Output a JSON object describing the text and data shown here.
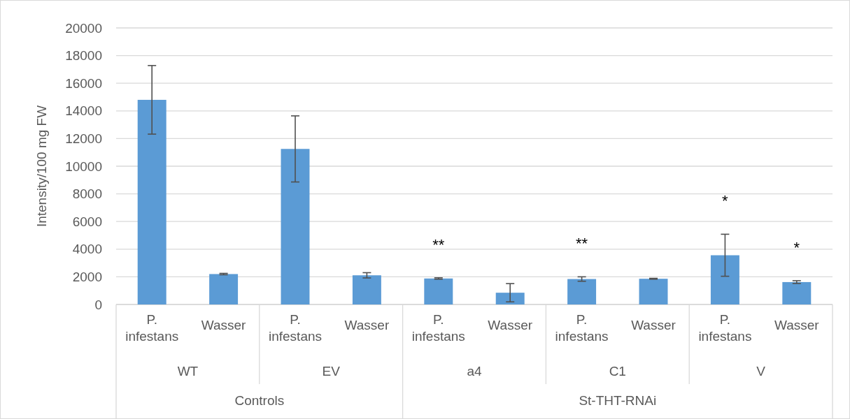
{
  "chart_data": {
    "type": "bar",
    "ylabel": "Intensity/100 mg FW",
    "categories": [
      "P. infestans",
      "Wasser",
      "P. infestans",
      "Wasser",
      "P. infestans",
      "Wasser",
      "P. infestans",
      "Wasser",
      "P. infestans",
      "Wasser"
    ],
    "values": [
      14800,
      2200,
      11250,
      2110,
      1880,
      850,
      1840,
      1860,
      3560,
      1620
    ],
    "errors": [
      2480,
      50,
      2390,
      190,
      50,
      660,
      160,
      30,
      1520,
      100
    ],
    "value_labels": [
      null,
      null,
      null,
      null,
      "**",
      null,
      "**",
      null,
      "*",
      "*"
    ],
    "color": "#5b9bd5",
    "ylim": [
      0,
      20000
    ],
    "yticks": [
      0,
      2000,
      4000,
      6000,
      8000,
      10000,
      12000,
      14000,
      16000,
      18000,
      20000
    ],
    "grid": "y",
    "annotations": [
      "WT",
      "EV",
      "a4",
      "C1",
      "V",
      "Controls",
      "St-THT-RNAi"
    ]
  }
}
